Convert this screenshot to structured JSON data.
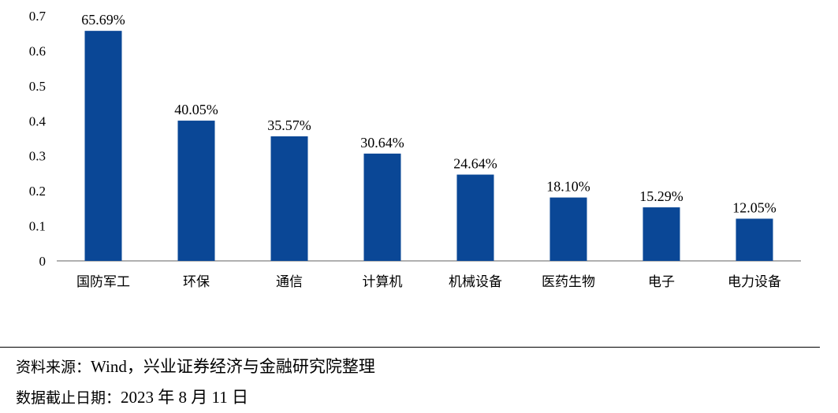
{
  "chart_data": {
    "type": "bar",
    "categories": [
      "国防军工",
      "环保",
      "通信",
      "计算机",
      "机械设备",
      "医药生物",
      "电子",
      "电力设备"
    ],
    "values": [
      0.6569,
      0.4005,
      0.3557,
      0.3064,
      0.2464,
      0.181,
      0.1529,
      0.1205
    ],
    "data_labels": [
      "65.69%",
      "40.05%",
      "35.57%",
      "30.64%",
      "24.64%",
      "18.10%",
      "15.29%",
      "12.05%"
    ],
    "y_ticks": [
      "0",
      "0.1",
      "0.2",
      "0.3",
      "0.4",
      "0.5",
      "0.6",
      "0.7"
    ],
    "ylim": [
      0,
      0.7
    ],
    "bar_color": "#0a4796",
    "axis_color": "#808080",
    "grid": false,
    "legend": "none"
  },
  "notes": {
    "source_label": "资料来源：",
    "source_text": "Wind，兴业证券经济与金融研究院整理",
    "cutoff_label": "数据截止日期：",
    "cutoff_text": "2023 年 8 月 11 日"
  }
}
